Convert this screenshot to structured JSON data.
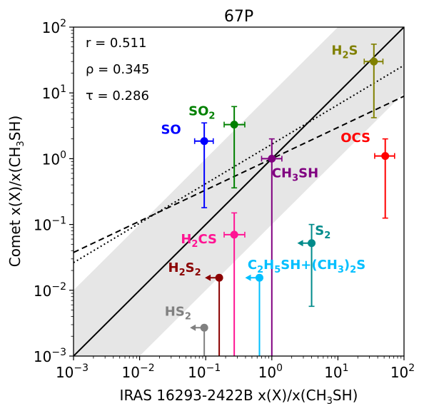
{
  "chart_data": {
    "type": "scatter",
    "title": "67P",
    "xlabel": {
      "pre": "IRAS 16293-2422B x(X)/x(CH",
      "sub": "3",
      "post": "SH)"
    },
    "ylabel": {
      "pre": "Comet x(X)/x(CH",
      "sub": "3",
      "post": "SH)"
    },
    "xscale": "log",
    "yscale": "log",
    "xlim": [
      0.001,
      100
    ],
    "ylim": [
      0.001,
      100
    ],
    "xticks": [
      {
        "base": "10",
        "exp": "−3",
        "value": 0.001
      },
      {
        "base": "10",
        "exp": "−2",
        "value": 0.01
      },
      {
        "base": "10",
        "exp": "−1",
        "value": 0.1
      },
      {
        "base": "10",
        "exp": "0",
        "value": 1
      },
      {
        "base": "10",
        "exp": "1",
        "value": 10
      },
      {
        "base": "10",
        "exp": "2",
        "value": 100
      }
    ],
    "yticks": [
      {
        "base": "10",
        "exp": "−3",
        "value": 0.001
      },
      {
        "base": "10",
        "exp": "−2",
        "value": 0.01
      },
      {
        "base": "10",
        "exp": "−1",
        "value": 0.1
      },
      {
        "base": "10",
        "exp": "0",
        "value": 1
      },
      {
        "base": "10",
        "exp": "1",
        "value": 10
      },
      {
        "base": "10",
        "exp": "2",
        "value": 100
      }
    ],
    "stats": [
      {
        "symbol": "r",
        "text": "r = 0.511"
      },
      {
        "symbol": "rho",
        "text": "ρ = 0.345"
      },
      {
        "symbol": "tau",
        "text": "τ = 0.286"
      }
    ],
    "band": {
      "factor": 10,
      "color": "#e6e6e6"
    },
    "lines": [
      {
        "style": "solid",
        "slope": 1.0,
        "intercept_log": 0.0
      },
      {
        "style": "dashed",
        "slope": 0.475,
        "intercept_log": 0.0
      },
      {
        "style": "dotted",
        "slope": 0.6,
        "intercept_log": 0.22
      }
    ],
    "points": [
      {
        "name": "H2S",
        "parts": [
          [
            "H",
            ""
          ],
          [
            "2",
            "sub"
          ],
          [
            "S",
            ""
          ]
        ],
        "color": "#808000",
        "x": 35,
        "y": 30,
        "xerr": [
          25,
          48
        ],
        "yerr": [
          4.2,
          55
        ],
        "upper_x": false,
        "label_x": 8.0,
        "label_y": 38
      },
      {
        "name": "SO2",
        "parts": [
          [
            "SO",
            ""
          ],
          [
            "2",
            "sub"
          ]
        ],
        "color": "#008000",
        "x": 0.27,
        "y": 3.3,
        "xerr": [
          0.19,
          0.39
        ],
        "yerr": [
          0.36,
          6.2
        ],
        "upper_x": false,
        "label_x": 0.055,
        "label_y": 4.6
      },
      {
        "name": "SO",
        "parts": [
          [
            "SO",
            ""
          ]
        ],
        "color": "#0000ff",
        "x": 0.095,
        "y": 1.85,
        "xerr": [
          0.068,
          0.13
        ],
        "yerr": [
          0.18,
          3.5
        ],
        "upper_x": false,
        "label_x": 0.021,
        "label_y": 2.4
      },
      {
        "name": "OCS",
        "parts": [
          [
            "OCS",
            ""
          ]
        ],
        "color": "#ff0000",
        "x": 52,
        "y": 1.1,
        "xerr": [
          36,
          72
        ],
        "yerr": [
          0.125,
          2.0
        ],
        "upper_x": false,
        "label_x": 11.0,
        "label_y": 1.8
      },
      {
        "name": "CH3SH",
        "parts": [
          [
            "CH",
            ""
          ],
          [
            "3",
            "sub"
          ],
          [
            "SH",
            ""
          ]
        ],
        "color": "#800080",
        "x": 1.0,
        "y": 1.0,
        "xerr": [
          0.7,
          1.42
        ],
        "yerr": [
          0.001,
          2.0
        ],
        "upper_x": false,
        "label_x": 1.0,
        "label_y": 0.52
      },
      {
        "name": "H2CS",
        "parts": [
          [
            "H",
            ""
          ],
          [
            "2",
            "sub"
          ],
          [
            "CS",
            ""
          ]
        ],
        "color": "#ff1493",
        "x": 0.27,
        "y": 0.07,
        "xerr": [
          0.19,
          0.39
        ],
        "yerr": [
          0.001,
          0.15
        ],
        "upper_x": false,
        "label_x": 0.042,
        "label_y": 0.052
      },
      {
        "name": "S2",
        "parts": [
          [
            "S",
            ""
          ],
          [
            "2",
            "sub"
          ]
        ],
        "color": "#008b8b",
        "x": 4.0,
        "y": 0.052,
        "xerr": null,
        "yerr": [
          0.0057,
          0.1
        ],
        "upper_x": true,
        "label_x": 4.5,
        "label_y": 0.07
      },
      {
        "name": "H2S2",
        "parts": [
          [
            "H",
            ""
          ],
          [
            "2",
            "sub"
          ],
          [
            "S",
            ""
          ],
          [
            "2",
            "sub"
          ]
        ],
        "color": "#8b0000",
        "x": 0.16,
        "y": 0.0155,
        "xerr": null,
        "yerr": [
          0.001,
          0.0155
        ],
        "upper_x": true,
        "label_x": 0.027,
        "label_y": 0.019
      },
      {
        "name": "C2H5SH+(CH3)2S",
        "parts": [
          [
            "C",
            ""
          ],
          [
            "2",
            "sub"
          ],
          [
            "H",
            ""
          ],
          [
            "5",
            "sub"
          ],
          [
            "SH+(CH",
            ""
          ],
          [
            "3",
            "sub"
          ],
          [
            ")",
            ""
          ],
          [
            "2",
            "sub"
          ],
          [
            "S",
            ""
          ]
        ],
        "color": "#00bfff",
        "x": 0.65,
        "y": 0.0155,
        "xerr": null,
        "yerr": [
          0.001,
          0.0155
        ],
        "upper_x": true,
        "label_x": 0.43,
        "label_y": 0.021
      },
      {
        "name": "HS2",
        "parts": [
          [
            "HS",
            ""
          ],
          [
            "2",
            "sub"
          ]
        ],
        "color": "#808080",
        "x": 0.095,
        "y": 0.0027,
        "xerr": null,
        "yerr": [
          0.001,
          0.0027
        ],
        "upper_x": true,
        "label_x": 0.024,
        "label_y": 0.0041
      }
    ]
  }
}
